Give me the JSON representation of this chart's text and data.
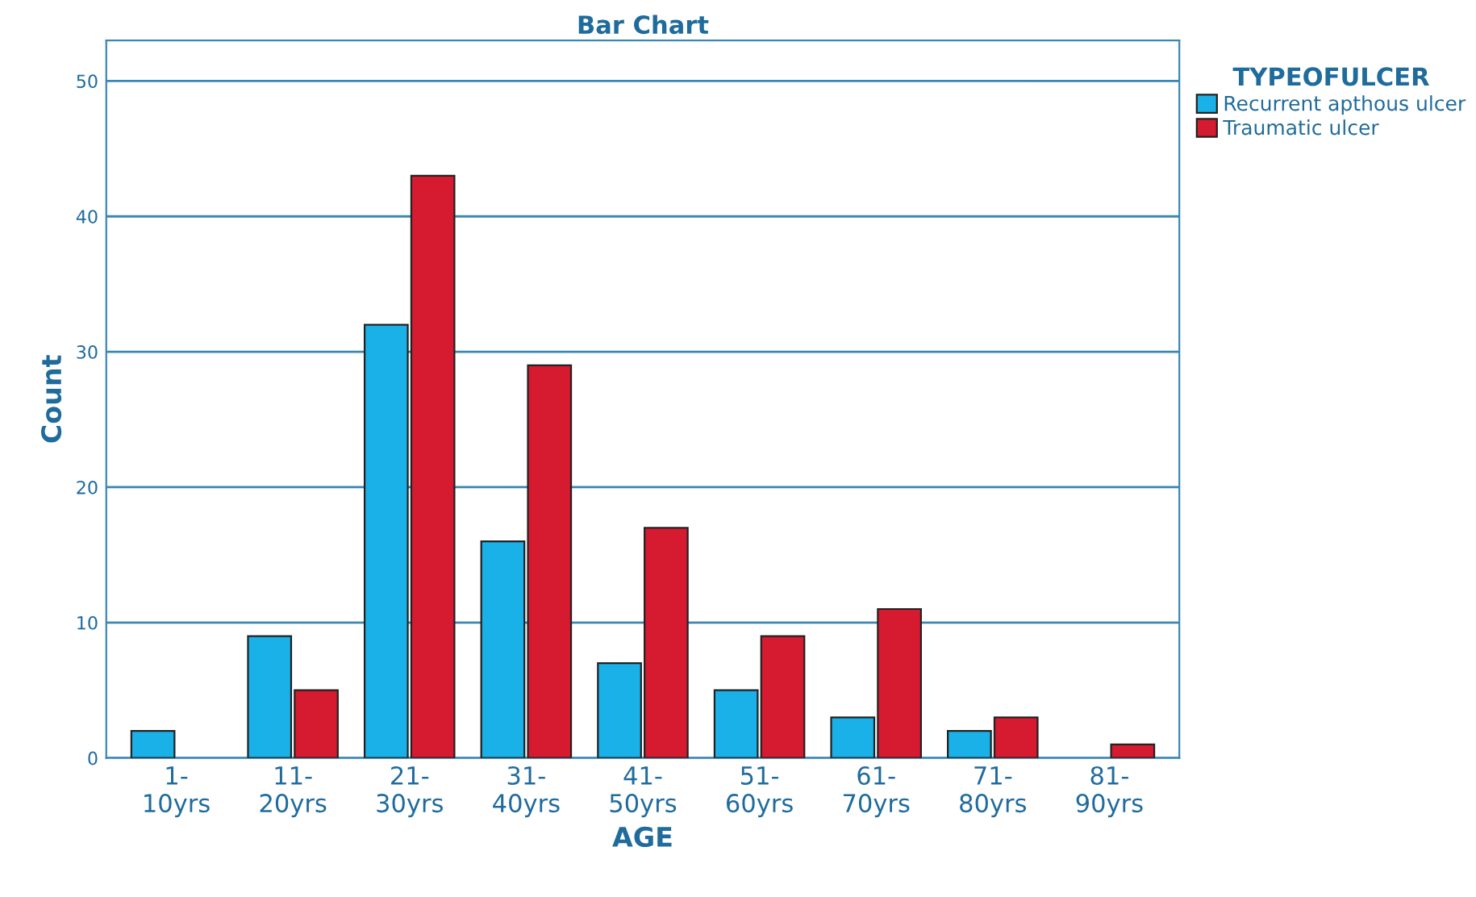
{
  "chart_data": {
    "type": "bar",
    "title": "Bar Chart",
    "xlabel": "AGE",
    "ylabel": "Count",
    "legend_title": "TYPEOFULCER",
    "categories": [
      "1-\n10yrs",
      "11-\n20yrs",
      "21-\n30yrs",
      "31-\n40yrs",
      "41-\n50yrs",
      "51-\n60yrs",
      "61-\n70yrs",
      "71-\n80yrs",
      "81-\n90yrs"
    ],
    "series": [
      {
        "name": "Recurrent apthous ulcer",
        "color": "#1ab0e8",
        "values": [
          2,
          9,
          32,
          16,
          7,
          5,
          3,
          2,
          null
        ]
      },
      {
        "name": "Traumatic ulcer",
        "color": "#d61a30",
        "values": [
          null,
          5,
          43,
          29,
          17,
          9,
          11,
          3,
          1
        ]
      }
    ],
    "ylim": [
      0,
      53
    ],
    "yticks": [
      0,
      10,
      20,
      30,
      40,
      50
    ],
    "grid": "y",
    "legend": "top right"
  }
}
